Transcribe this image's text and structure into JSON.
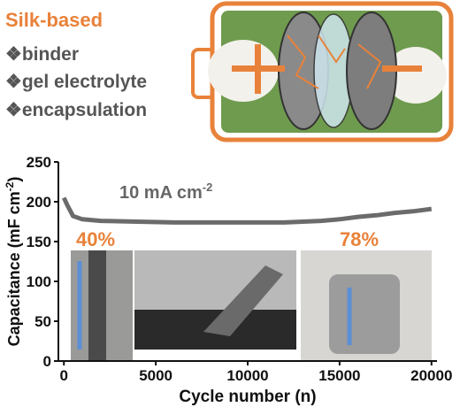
{
  "header": {
    "title": "Silk-based",
    "items": [
      "❖binder",
      "❖gel electrolyte",
      "❖encapsulation"
    ]
  },
  "chart_data": {
    "type": "line",
    "x": [
      0,
      200,
      500,
      1000,
      2000,
      4000,
      6000,
      8000,
      10000,
      12000,
      14000,
      15000,
      16000,
      17000,
      18000,
      19000,
      20000
    ],
    "series": [
      {
        "color": "#6b6b6b",
        "values": [
          205,
          195,
          182,
          178,
          176,
          175,
          174,
          174,
          174,
          174,
          176,
          178,
          181,
          183,
          186,
          188,
          191
        ]
      }
    ],
    "xlim": [
      -300,
      20300
    ],
    "ylim": [
      0,
      250
    ],
    "xticks": [
      0,
      5000,
      10000,
      15000,
      20000
    ],
    "yticks": [
      0,
      50,
      100,
      150,
      200,
      250
    ],
    "xlabel": "Cycle number (n)",
    "ylabel": {
      "text": "Capacitance (mF cm",
      "sup": "-2",
      "end": ")"
    },
    "annotations": [
      {
        "text": "10 mA cm",
        "sup": "-2"
      },
      {
        "text": "40%"
      },
      {
        "text": "78%"
      }
    ],
    "grid": false
  }
}
